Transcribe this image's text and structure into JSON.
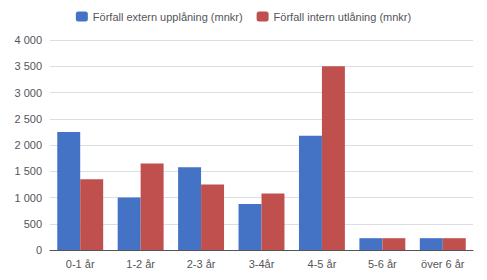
{
  "chart_data": {
    "type": "bar",
    "categories": [
      "0-1 år",
      "1-2 år",
      "2-3 år",
      "3-4år",
      "4-5 år",
      "5-6 år",
      "över 6 år"
    ],
    "series": [
      {
        "name": "Förfall extern upplåning (mnkr)",
        "color": "#4472C4",
        "values": [
          2250,
          1000,
          1575,
          875,
          2175,
          225,
          225
        ]
      },
      {
        "name": "Förfall intern utlåning (mnkr)",
        "color": "#C0504D",
        "values": [
          1350,
          1650,
          1250,
          1075,
          3500,
          225,
          225
        ]
      }
    ],
    "ylim": [
      0,
      4000
    ],
    "yticks": [
      0,
      500,
      {
        "value": 1000,
        "label": "1 000"
      },
      {
        "value": 1500,
        "label": "1 500"
      },
      {
        "value": 2000,
        "label": "2 000"
      },
      {
        "value": 2500,
        "label": "2 500"
      },
      {
        "value": 3000,
        "label": "3 000"
      },
      {
        "value": 3500,
        "label": "3 500"
      },
      {
        "value": 4000,
        "label": "4 000"
      }
    ],
    "grid": true,
    "legend": "top"
  }
}
